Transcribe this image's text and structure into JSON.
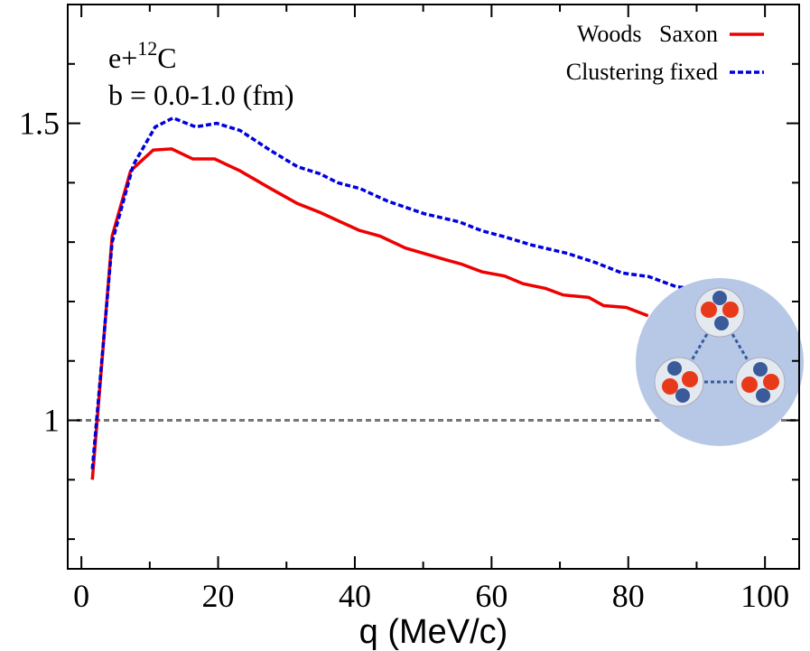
{
  "chart_data": {
    "type": "line",
    "xlabel": "q (MeV/c)",
    "annotation_prefix": "e+",
    "annotation_mass": "12",
    "annotation_element": "C",
    "annotation_b": "b = 0.0-1.0 (fm)",
    "xlim": [
      -2,
      105
    ],
    "ylim": [
      0.75,
      1.7
    ],
    "xticks": [
      0,
      20,
      40,
      60,
      80,
      100
    ],
    "yticks": [
      1,
      1.5
    ],
    "xminorticks": [
      10,
      30,
      50,
      70,
      90
    ],
    "yminorticks": [
      0.8,
      0.9,
      1.1,
      1.2,
      1.3,
      1.4,
      1.6
    ],
    "hline": 1,
    "hline_color": "#777777",
    "legend": "top-right",
    "series": [
      {
        "name": "Woods   Saxon",
        "color": "#ee0000",
        "dash": false,
        "x": [
          1.6,
          4.5,
          7.2,
          10.5,
          13.2,
          16.3,
          19.5,
          23.2,
          27.7,
          31.6,
          34.9,
          40.6,
          43.7,
          47.4,
          53.4,
          55.6,
          58.6,
          61.9,
          64.6,
          67.9,
          70.5,
          74.2,
          76.4,
          79.7,
          82.9
        ],
        "values": [
          0.9,
          1.31,
          1.42,
          1.455,
          1.457,
          1.44,
          1.44,
          1.42,
          1.39,
          1.365,
          1.35,
          1.32,
          1.31,
          1.29,
          1.27,
          1.263,
          1.25,
          1.243,
          1.23,
          1.222,
          1.211,
          1.207,
          1.193,
          1.19,
          1.176
        ]
      },
      {
        "name": "Clustering fixed",
        "color": "#0000dd",
        "dash": true,
        "x": [
          1.6,
          4.5,
          7.6,
          10.8,
          13.4,
          16.7,
          19.8,
          23.2,
          27.7,
          31.6,
          34.9,
          37.5,
          40.8,
          44.8,
          50.1,
          55.3,
          58.6,
          61.9,
          65.9,
          71.1,
          75.1,
          79.1,
          83.0,
          87.0,
          89.3
        ],
        "values": [
          0.918,
          1.3,
          1.43,
          1.494,
          1.509,
          1.494,
          1.5,
          1.488,
          1.454,
          1.427,
          1.415,
          1.4,
          1.39,
          1.369,
          1.348,
          1.334,
          1.319,
          1.309,
          1.295,
          1.281,
          1.266,
          1.248,
          1.242,
          1.225,
          1.222
        ]
      }
    ]
  }
}
